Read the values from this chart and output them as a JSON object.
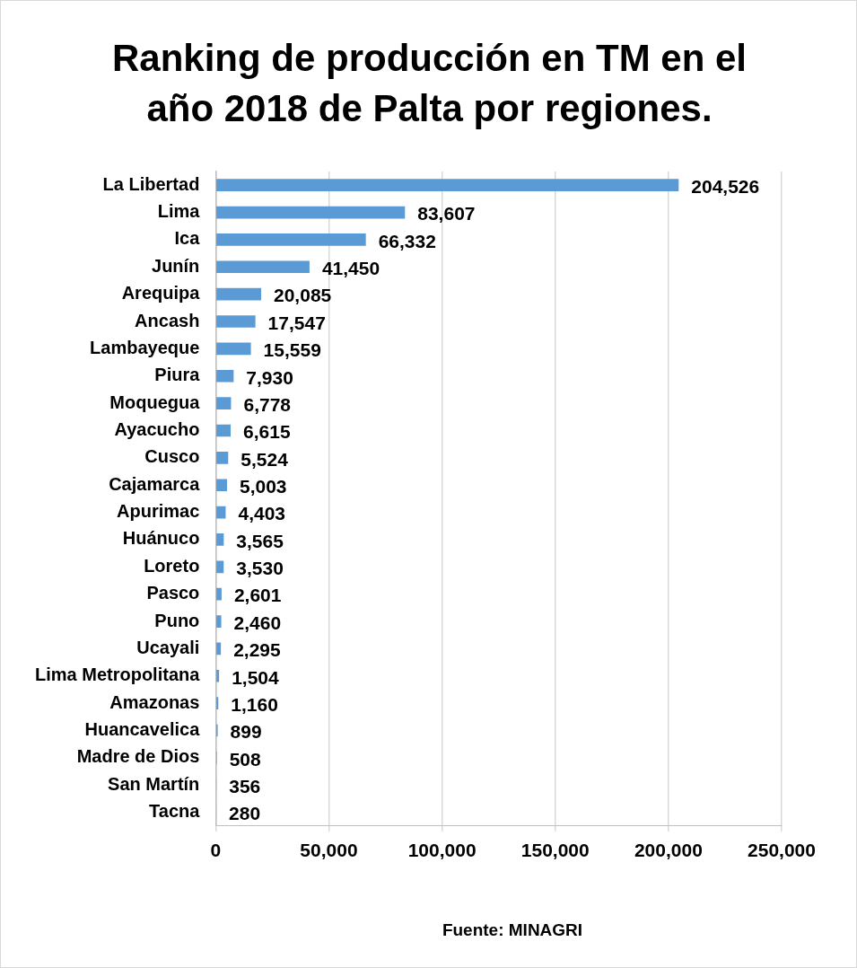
{
  "chart_data": {
    "type": "bar",
    "orientation": "horizontal",
    "title": "Ranking de producción en TM en el año 2018 de Palta por regiones.",
    "categories": [
      "La Libertad",
      "Lima",
      "Ica",
      "Junín",
      "Arequipa",
      "Ancash",
      "Lambayeque",
      "Piura",
      "Moquegua",
      "Ayacucho",
      "Cusco",
      "Cajamarca",
      "Apurimac",
      "Huánuco",
      "Loreto",
      "Pasco",
      "Puno",
      "Ucayali",
      "Lima Metropolitana",
      "Amazonas",
      "Huancavelica",
      "Madre de Dios",
      "San Martín",
      "Tacna"
    ],
    "values": [
      204526,
      83607,
      66332,
      41450,
      20085,
      17547,
      15559,
      7930,
      6778,
      6615,
      5524,
      5003,
      4403,
      3565,
      3530,
      2601,
      2460,
      2295,
      1504,
      1160,
      899,
      508,
      356,
      280
    ],
    "value_labels": [
      "204,526",
      "83,607",
      "66,332",
      "41,450",
      "20,085",
      "17,547",
      "15,559",
      "7,930",
      "6,778",
      "6,615",
      "5,524",
      "5,003",
      "4,403",
      "3,565",
      "3,530",
      "2,601",
      "2,460",
      "2,295",
      "1,504",
      "1,160",
      "899",
      "508",
      "356",
      "280"
    ],
    "color": "#5b9bd5",
    "xlim": [
      0,
      250000
    ],
    "xticks": [
      0,
      {
        "value": 50000,
        "label": "50,000"
      },
      {
        "value": 100000,
        "label": "100,000"
      },
      {
        "value": 150000,
        "label": "150,000"
      },
      {
        "value": 200000,
        "label": "200,000"
      },
      {
        "value": 250000,
        "label": "250,000"
      }
    ],
    "grid": "x",
    "annotations": [
      "Fuente: MINAGRI"
    ]
  }
}
